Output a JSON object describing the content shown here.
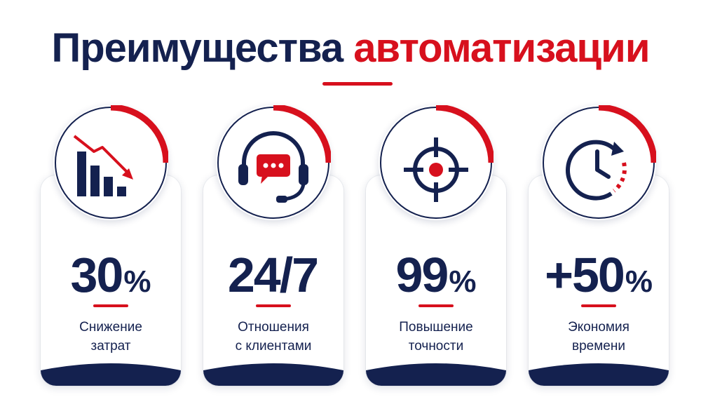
{
  "title": {
    "part1": "Преимущества",
    "part2": "автоматизации"
  },
  "colors": {
    "navy": "#14214f",
    "red": "#d7101d"
  },
  "cards": [
    {
      "icon": "cost-reduction-chart-icon",
      "value": "30",
      "unit": "%",
      "line1": "Снижение",
      "line2": "затрат"
    },
    {
      "icon": "headset-chat-icon",
      "value": "24/7",
      "unit": "",
      "line1": "Отношения",
      "line2": "с клиентами"
    },
    {
      "icon": "target-crosshair-icon",
      "value": "99",
      "unit": "%",
      "line1": "Повышение",
      "line2": "точности"
    },
    {
      "icon": "clock-icon",
      "value": "+50",
      "unit": "%",
      "line1": "Экономия",
      "line2": "времени"
    }
  ]
}
